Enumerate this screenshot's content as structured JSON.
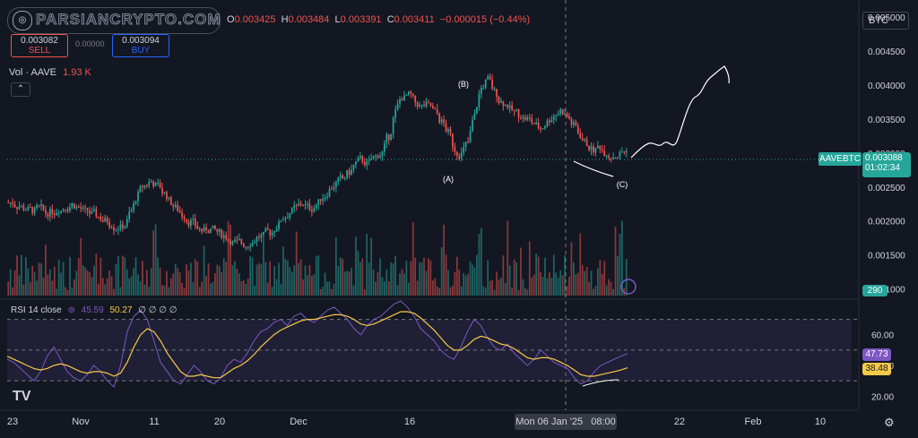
{
  "header": {
    "watermark": "PARSIANCRYPTO.COM",
    "ohlc": [
      {
        "k": "O",
        "v": "0.003425"
      },
      {
        "k": "H",
        "v": "0.003484"
      },
      {
        "k": "L",
        "v": "0.003391"
      },
      {
        "k": "C",
        "v": "0.003411"
      },
      {
        "k": "",
        "v": "−0.000015 (−0.44%)"
      }
    ],
    "sell_price": "0.003082",
    "sell_label": "SELL",
    "spread_label": "0.00000",
    "buy_price": "0.003094",
    "buy_label": "BUY",
    "currency_button": "BTC"
  },
  "volume_indicator": {
    "label": "Vol · AAVE",
    "value": "1.93 K",
    "badge": "290"
  },
  "symbol_tag": {
    "symbol": "AAVEBTC",
    "price": "0.003088",
    "countdown": "01:02:34"
  },
  "rsi_indicator": {
    "label": "RSI 14 close",
    "rsi": "45.59",
    "ma": "50.27",
    "extra": "∅ ∅ ∅ ∅",
    "rsi_tag": "47.73",
    "ma_tag": "38.48"
  },
  "waves": [
    "(A)",
    "(B)",
    "(C)"
  ],
  "crosshair_label": "Mon 06 Jan '25   08:00",
  "colors": {
    "up": "#26a69a",
    "down": "#ef5350",
    "rsi": "#7e57c2",
    "ma": "#f7c948",
    "bg": "#131722"
  },
  "chart_data": [
    {
      "type": "candlestick",
      "title": "AAVEBTC",
      "price_axis_ticks": [
        "0.005000",
        "0.004500",
        "0.004000",
        "0.003500",
        "0.003000",
        "0.002500",
        "0.002000",
        "0.001500",
        "0.001000"
      ],
      "ylim": [
        0.00085,
        0.00525
      ],
      "time_axis_ticks": [
        "23",
        "Nov",
        "11",
        "20",
        "Dec",
        "16",
        "Mon 06 Jan '25   08:00",
        "22",
        "Feb",
        "10"
      ],
      "series_close": [
        0.00227,
        0.00222,
        0.00218,
        0.00216,
        0.00219,
        0.00212,
        0.00215,
        0.00218,
        0.00221,
        0.00224,
        0.0022,
        0.00214,
        0.0021,
        0.00206,
        0.002,
        0.00195,
        0.00191,
        0.00193,
        0.00215,
        0.00238,
        0.00252,
        0.00258,
        0.00252,
        0.0024,
        0.00228,
        0.00218,
        0.00208,
        0.00198,
        0.0019,
        0.00185,
        0.00187,
        0.00184,
        0.00178,
        0.00172,
        0.00168,
        0.00166,
        0.00168,
        0.00175,
        0.00178,
        0.00183,
        0.00192,
        0.00205,
        0.00212,
        0.0022,
        0.00225,
        0.0022,
        0.00223,
        0.00235,
        0.00245,
        0.00255,
        0.00262,
        0.00272,
        0.00285,
        0.0029,
        0.00285,
        0.00295,
        0.003,
        0.00325,
        0.0036,
        0.00382,
        0.00385,
        0.00375,
        0.00368,
        0.0037,
        0.0036,
        0.00345,
        0.0033,
        0.00305,
        0.00298,
        0.00315,
        0.00355,
        0.00395,
        0.00408,
        0.0039,
        0.00375,
        0.0037,
        0.0036,
        0.00355,
        0.0035,
        0.00343,
        0.00336,
        0.00345,
        0.00355,
        0.00362,
        0.00355,
        0.0034,
        0.00326,
        0.00314,
        0.00305,
        0.0031,
        0.003,
        0.00295,
        0.00298,
        0.00302
      ],
      "volume_badge": "290",
      "projection": "hand-drawn path from (C) rising toward 0.0047"
    },
    {
      "type": "line",
      "title": "RSI 14 close",
      "axis_ticks": [
        "60.00",
        "40.00",
        "20.00"
      ],
      "ylim": [
        12,
        82
      ],
      "bands": [
        70,
        50,
        30
      ],
      "series": [
        {
          "name": "RSI",
          "values": [
            44,
            42,
            38,
            34,
            30,
            36,
            46,
            52,
            44,
            36,
            32,
            30,
            34,
            40,
            36,
            30,
            26,
            40,
            62,
            72,
            76,
            70,
            56,
            42,
            36,
            30,
            28,
            34,
            40,
            36,
            30,
            28,
            32,
            40,
            44,
            42,
            48,
            56,
            62,
            64,
            68,
            70,
            66,
            72,
            74,
            70,
            68,
            72,
            76,
            78,
            74,
            70,
            64,
            60,
            66,
            70,
            72,
            76,
            80,
            82,
            78,
            72,
            64,
            60,
            56,
            50,
            46,
            44,
            52,
            62,
            70,
            66,
            58,
            52,
            50,
            54,
            48,
            44,
            40,
            44,
            50,
            46,
            42,
            40,
            38,
            32,
            28,
            30,
            36,
            40,
            42,
            44,
            46,
            47.73
          ]
        },
        {
          "name": "MA",
          "values": [
            46,
            44,
            42,
            40,
            38,
            37,
            38,
            40,
            41,
            40,
            38,
            36,
            35,
            36,
            36,
            35,
            33,
            35,
            42,
            52,
            60,
            64,
            62,
            56,
            48,
            42,
            36,
            33,
            33,
            34,
            33,
            32,
            32,
            35,
            38,
            40,
            43,
            47,
            52,
            56,
            60,
            63,
            65,
            67,
            69,
            70,
            70,
            71,
            72,
            73,
            73,
            72,
            70,
            67,
            66,
            67,
            69,
            71,
            73,
            75,
            75,
            74,
            71,
            67,
            63,
            58,
            53,
            50,
            50,
            53,
            57,
            59,
            58,
            56,
            54,
            53,
            51,
            48,
            45,
            44,
            45,
            45,
            44,
            42,
            40,
            37,
            34,
            33,
            33,
            34,
            35,
            36,
            37,
            38.48
          ]
        }
      ]
    }
  ]
}
